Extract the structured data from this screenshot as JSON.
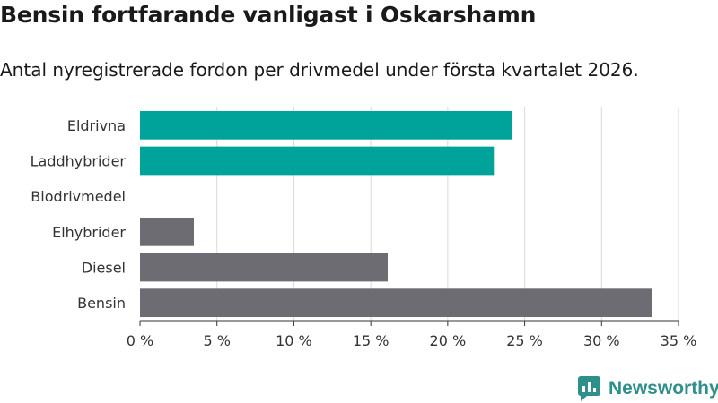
{
  "title": "Bensin fortfarande vanligast i Oskarshamn",
  "subtitle": "Antal nyregistrerade fordon per drivmedel under första kvartalet 2026.",
  "brand": "Newsworthy",
  "colors": {
    "highlight": "#00a39a",
    "muted": "#6d6c73",
    "grid": "#d9d9d9",
    "text": "#333333"
  },
  "icons": {
    "brand": "newsworthy-logo-icon"
  },
  "chart_data": {
    "type": "bar",
    "orientation": "horizontal",
    "categories": [
      "Eldrivna",
      "Laddhybrider",
      "Biodrivmedel",
      "Elhybrider",
      "Diesel",
      "Bensin"
    ],
    "values": [
      24.2,
      23.0,
      0,
      3.5,
      16.1,
      33.3
    ],
    "value_unit": "%",
    "bar_colors": [
      "highlight",
      "highlight",
      "highlight",
      "muted",
      "muted",
      "muted"
    ],
    "xlim": [
      0,
      35
    ],
    "xticks": [
      0,
      5,
      10,
      15,
      20,
      25,
      30,
      35
    ],
    "xtick_labels": [
      "0 %",
      "5 %",
      "10 %",
      "15 %",
      "20 %",
      "25 %",
      "30 %",
      "35 %"
    ],
    "grid": "vertical",
    "legend": "none"
  }
}
